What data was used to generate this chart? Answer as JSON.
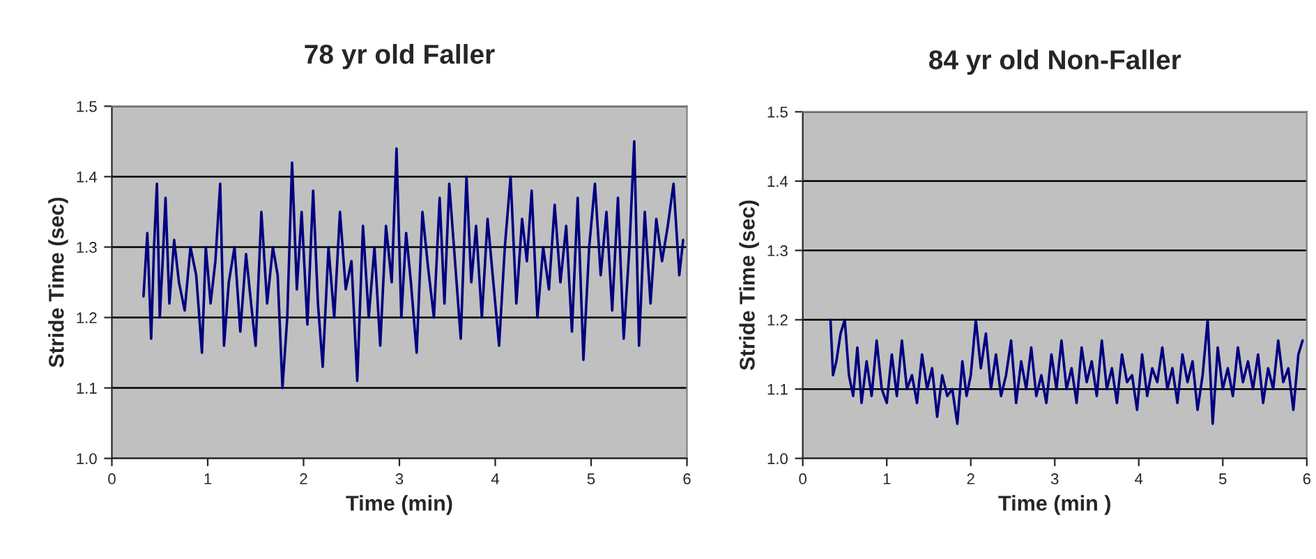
{
  "chart_data": [
    {
      "type": "line",
      "title": "78 yr old Faller",
      "xlabel": "Time (min)",
      "ylabel": "Stride Time (sec)",
      "xlim": [
        0,
        6
      ],
      "xticks": [
        0,
        1,
        2,
        3,
        4,
        5,
        6
      ],
      "ylim": [
        1.0,
        1.5
      ],
      "yticks": [
        {
          "value": 1.0,
          "label": "1.0"
        },
        {
          "value": 1.1,
          "label": "1.1"
        },
        {
          "value": 1.2,
          "label": "1.2"
        },
        {
          "value": 1.3,
          "label": "1.3"
        },
        {
          "value": 1.4,
          "label": "1.4"
        },
        {
          "value": 1.5,
          "label": "1.5"
        }
      ],
      "grid": "y",
      "marker": "none",
      "line_style": "solid",
      "series": [
        {
          "color": "#000080",
          "x": [
            0.33,
            0.37,
            0.41,
            0.44,
            0.47,
            0.5,
            0.53,
            0.56,
            0.6,
            0.65,
            0.7,
            0.76,
            0.82,
            0.88,
            0.94,
            0.98,
            1.03,
            1.08,
            1.13,
            1.17,
            1.22,
            1.28,
            1.34,
            1.4,
            1.46,
            1.5,
            1.56,
            1.62,
            1.68,
            1.73,
            1.78,
            1.83,
            1.88,
            1.93,
            1.98,
            2.04,
            2.1,
            2.15,
            2.2,
            2.26,
            2.32,
            2.38,
            2.44,
            2.5,
            2.56,
            2.62,
            2.68,
            2.74,
            2.8,
            2.86,
            2.92,
            2.97,
            3.02,
            3.07,
            3.12,
            3.18,
            3.24,
            3.3,
            3.36,
            3.42,
            3.47,
            3.52,
            3.58,
            3.64,
            3.7,
            3.75,
            3.8,
            3.86,
            3.92,
            3.98,
            4.04,
            4.1,
            4.16,
            4.22,
            4.28,
            4.33,
            4.38,
            4.44,
            4.5,
            4.56,
            4.62,
            4.68,
            4.74,
            4.8,
            4.86,
            4.92,
            4.98,
            5.04,
            5.1,
            5.16,
            5.22,
            5.28,
            5.34,
            5.4,
            5.45,
            5.5,
            5.56,
            5.62,
            5.68,
            5.74,
            5.8,
            5.86,
            5.92,
            5.96
          ],
          "values": [
            1.23,
            1.32,
            1.17,
            1.3,
            1.39,
            1.2,
            1.28,
            1.37,
            1.22,
            1.31,
            1.25,
            1.21,
            1.3,
            1.26,
            1.15,
            1.3,
            1.22,
            1.28,
            1.39,
            1.16,
            1.25,
            1.3,
            1.18,
            1.29,
            1.21,
            1.16,
            1.35,
            1.22,
            1.3,
            1.26,
            1.1,
            1.2,
            1.42,
            1.24,
            1.35,
            1.19,
            1.38,
            1.22,
            1.13,
            1.3,
            1.2,
            1.35,
            1.24,
            1.28,
            1.11,
            1.33,
            1.2,
            1.3,
            1.16,
            1.33,
            1.25,
            1.44,
            1.2,
            1.32,
            1.25,
            1.15,
            1.35,
            1.27,
            1.2,
            1.37,
            1.22,
            1.39,
            1.28,
            1.17,
            1.4,
            1.25,
            1.33,
            1.2,
            1.34,
            1.25,
            1.16,
            1.3,
            1.4,
            1.22,
            1.34,
            1.28,
            1.38,
            1.2,
            1.3,
            1.24,
            1.36,
            1.25,
            1.33,
            1.18,
            1.37,
            1.14,
            1.3,
            1.39,
            1.26,
            1.35,
            1.21,
            1.37,
            1.17,
            1.3,
            1.45,
            1.16,
            1.35,
            1.22,
            1.34,
            1.28,
            1.33,
            1.39,
            1.26,
            1.31
          ]
        }
      ]
    },
    {
      "type": "line",
      "title": "84 yr old Non-Faller",
      "xlabel": "Time (min )",
      "ylabel": "Stride Time (sec)",
      "xlim": [
        0,
        6
      ],
      "xticks": [
        0,
        1,
        2,
        3,
        4,
        5,
        6
      ],
      "ylim": [
        1.0,
        1.5
      ],
      "yticks": [
        {
          "value": 1.0,
          "label": "1.0"
        },
        {
          "value": 1.1,
          "label": "1.1"
        },
        {
          "value": 1.2,
          "label": "1.2"
        },
        {
          "value": 1.3,
          "label": "1.3"
        },
        {
          "value": 1.4,
          "label": "1.4"
        },
        {
          "value": 1.5,
          "label": "1.5"
        }
      ],
      "grid": "y",
      "marker": "none",
      "line_style": "solid",
      "series": [
        {
          "color": "#000080",
          "x": [
            0.33,
            0.36,
            0.4,
            0.45,
            0.5,
            0.55,
            0.6,
            0.65,
            0.7,
            0.76,
            0.82,
            0.88,
            0.94,
            1.0,
            1.06,
            1.12,
            1.18,
            1.24,
            1.3,
            1.36,
            1.42,
            1.48,
            1.54,
            1.6,
            1.66,
            1.72,
            1.78,
            1.84,
            1.9,
            1.95,
            2.0,
            2.06,
            2.12,
            2.18,
            2.24,
            2.3,
            2.36,
            2.42,
            2.48,
            2.54,
            2.6,
            2.66,
            2.72,
            2.78,
            2.84,
            2.9,
            2.96,
            3.02,
            3.08,
            3.14,
            3.2,
            3.26,
            3.32,
            3.38,
            3.44,
            3.5,
            3.56,
            3.62,
            3.68,
            3.74,
            3.8,
            3.86,
            3.92,
            3.98,
            4.04,
            4.1,
            4.16,
            4.22,
            4.28,
            4.34,
            4.4,
            4.46,
            4.52,
            4.58,
            4.64,
            4.7,
            4.76,
            4.82,
            4.88,
            4.94,
            5.0,
            5.06,
            5.12,
            5.18,
            5.24,
            5.3,
            5.36,
            5.42,
            5.48,
            5.54,
            5.6,
            5.66,
            5.72,
            5.78,
            5.84,
            5.9,
            5.95
          ],
          "values": [
            1.2,
            1.12,
            1.14,
            1.18,
            1.2,
            1.12,
            1.09,
            1.16,
            1.08,
            1.14,
            1.09,
            1.17,
            1.1,
            1.08,
            1.15,
            1.09,
            1.17,
            1.1,
            1.12,
            1.08,
            1.15,
            1.1,
            1.13,
            1.06,
            1.12,
            1.09,
            1.1,
            1.05,
            1.14,
            1.09,
            1.12,
            1.2,
            1.13,
            1.18,
            1.1,
            1.15,
            1.09,
            1.12,
            1.17,
            1.08,
            1.14,
            1.1,
            1.16,
            1.09,
            1.12,
            1.08,
            1.15,
            1.1,
            1.17,
            1.1,
            1.13,
            1.08,
            1.16,
            1.11,
            1.14,
            1.09,
            1.17,
            1.1,
            1.13,
            1.08,
            1.15,
            1.11,
            1.12,
            1.07,
            1.15,
            1.09,
            1.13,
            1.11,
            1.16,
            1.1,
            1.13,
            1.08,
            1.15,
            1.11,
            1.14,
            1.07,
            1.12,
            1.2,
            1.05,
            1.16,
            1.1,
            1.13,
            1.09,
            1.16,
            1.11,
            1.14,
            1.1,
            1.15,
            1.08,
            1.13,
            1.1,
            1.17,
            1.11,
            1.13,
            1.07,
            1.15,
            1.17
          ]
        }
      ]
    }
  ]
}
